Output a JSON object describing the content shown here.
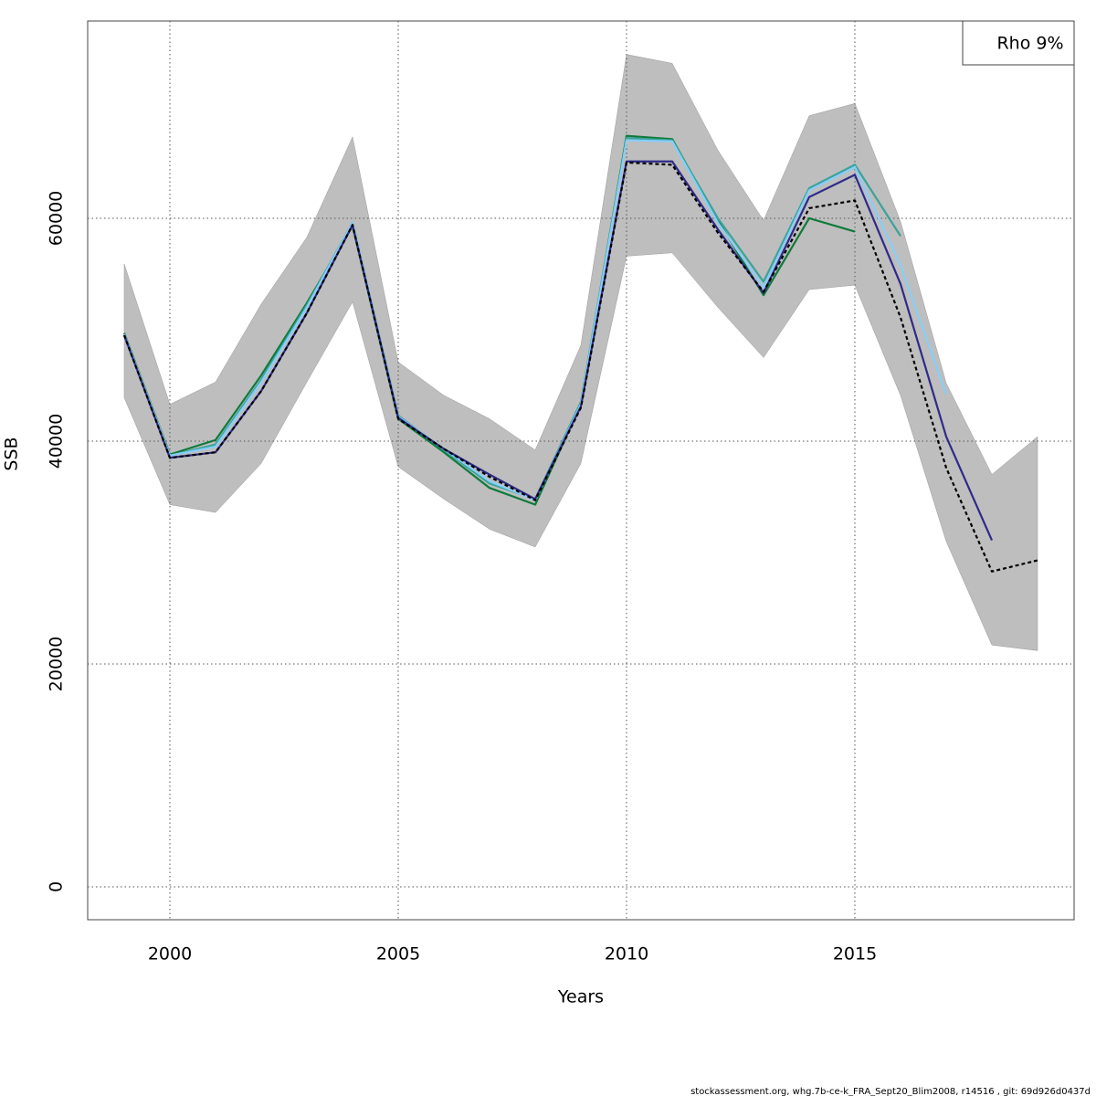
{
  "chart_data": {
    "type": "line",
    "xlabel": "Years",
    "ylabel": "SSB",
    "legend_text": "Rho 9%",
    "footer": "stockassessment.org, whg.7b-ce-k_FRA_Sept20_Blim2008, r14516 , git: 69d926d0437d",
    "x": [
      1999,
      2000,
      2001,
      2002,
      2003,
      2004,
      2005,
      2006,
      2007,
      2008,
      2009,
      2010,
      2011,
      2012,
      2013,
      2014,
      2015,
      2016,
      2017,
      2018,
      2019
    ],
    "band": {
      "color": "#bebebe",
      "upper": [
        55900,
        43300,
        45300,
        52300,
        58300,
        67300,
        47100,
        44100,
        42000,
        39200,
        48600,
        74700,
        73900,
        66100,
        59800,
        69200,
        70300,
        59700,
        45200,
        37000,
        40400
      ],
      "lower": [
        43900,
        34300,
        33600,
        38000,
        45300,
        52500,
        37700,
        34800,
        32100,
        30500,
        38000,
        56600,
        56900,
        52000,
        47500,
        53600,
        54000,
        44100,
        31000,
        21700,
        21200
      ]
    },
    "series": [
      {
        "color": "#000000",
        "dashed": true,
        "values": [
          49500,
          38500,
          39000,
          44500,
          51500,
          59400,
          42000,
          39300,
          36800,
          34700,
          43000,
          65000,
          64800,
          58700,
          53400,
          60900,
          61600,
          51100,
          37600,
          28300,
          29300
        ]
      },
      {
        "color": "#2e2a8a",
        "values": [
          49500,
          38500,
          39000,
          44500,
          51500,
          59400,
          42100,
          39300,
          37000,
          34800,
          43100,
          65100,
          65100,
          59000,
          53300,
          61900,
          63900,
          54100,
          40400,
          31100,
          null
        ]
      },
      {
        "color": "#87cefa",
        "values": [
          49600,
          38700,
          39500,
          45300,
          52000,
          59600,
          42200,
          39300,
          36400,
          34700,
          43300,
          67000,
          66900,
          59600,
          53800,
          62500,
          64600,
          55800,
          44200,
          null,
          null
        ]
      },
      {
        "color": "#3aa39a",
        "values": [
          49600,
          38700,
          39700,
          45500,
          52200,
          59600,
          42300,
          39200,
          36200,
          34800,
          43500,
          67200,
          67000,
          60000,
          54300,
          62700,
          64800,
          58400,
          null,
          null,
          null
        ]
      },
      {
        "color": "#0f7a3a",
        "values": [
          49700,
          38800,
          40100,
          45900,
          52400,
          59300,
          42000,
          39000,
          35800,
          34300,
          43300,
          67400,
          67100,
          59800,
          53100,
          60000,
          58800,
          null,
          null,
          null,
          null
        ]
      }
    ],
    "xlim": [
      1998.2,
      2019.8
    ],
    "ylim": [
      -2950,
      77700
    ],
    "xticks": [
      2000,
      2005,
      2010,
      2015
    ],
    "yticks": [
      0,
      20000,
      40000,
      60000
    ],
    "grid": true
  }
}
